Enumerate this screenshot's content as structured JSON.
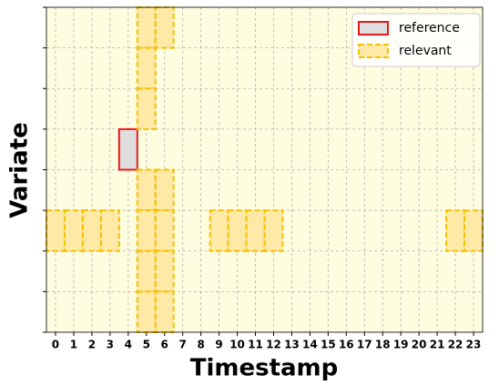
{
  "chart_data": {
    "type": "heatmap",
    "xlabel": "Timestamp",
    "ylabel": "Variate",
    "xlim": [
      -0.5,
      23.5
    ],
    "xticks": [
      0,
      1,
      2,
      3,
      4,
      5,
      6,
      7,
      8,
      9,
      10,
      11,
      12,
      13,
      14,
      15,
      16,
      17,
      18,
      19,
      20,
      21,
      22,
      23
    ],
    "ylim": [
      0,
      8
    ],
    "yticks": [
      0,
      1,
      2,
      3,
      4,
      5,
      6,
      7,
      8
    ],
    "grid": true,
    "background": "#fffde0",
    "legend": "upper right",
    "series": [
      {
        "name": "reference",
        "color": "#e8191b",
        "fill": "#dedede",
        "x": [
          4
        ],
        "y": [
          4
        ]
      },
      {
        "name": "relevant",
        "color": "#f5c000",
        "fill": "#ffe9a6",
        "x": [
          5,
          5,
          5,
          6,
          5,
          5,
          5,
          5,
          6,
          6,
          6,
          6,
          0,
          1,
          2,
          3,
          9,
          10,
          11,
          12,
          22,
          23
        ],
        "y": [
          7,
          6,
          5,
          7,
          3,
          2,
          1,
          0,
          3,
          2,
          1,
          0,
          2,
          2,
          2,
          2,
          2,
          2,
          2,
          2,
          2,
          2
        ]
      }
    ]
  }
}
